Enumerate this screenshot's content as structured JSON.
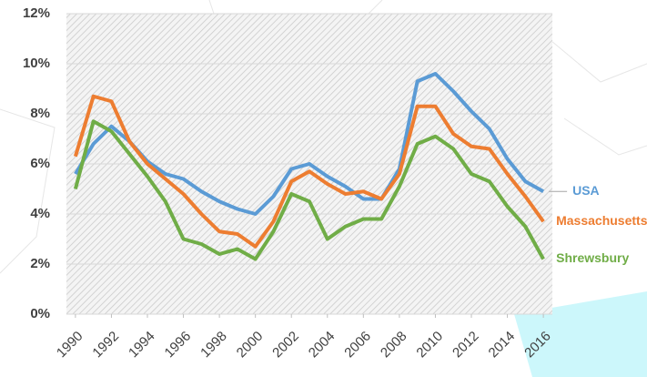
{
  "chart_data": {
    "type": "line",
    "x": [
      1990,
      1991,
      1992,
      1993,
      1994,
      1995,
      1996,
      1997,
      1998,
      1999,
      2000,
      2001,
      2002,
      2003,
      2004,
      2005,
      2006,
      2007,
      2008,
      2009,
      2010,
      2011,
      2012,
      2013,
      2014,
      2015,
      2016
    ],
    "series": [
      {
        "name": "USA",
        "color": "#5b9bd5",
        "values": [
          5.6,
          6.8,
          7.5,
          6.9,
          6.1,
          5.6,
          5.4,
          4.9,
          4.5,
          4.2,
          4.0,
          4.7,
          5.8,
          6.0,
          5.5,
          5.1,
          4.6,
          4.6,
          5.8,
          9.3,
          9.6,
          8.9,
          8.1,
          7.4,
          6.2,
          5.3,
          4.9
        ]
      },
      {
        "name": "Massachusetts",
        "color": "#ed7d31",
        "values": [
          6.3,
          8.7,
          8.5,
          6.9,
          6.0,
          5.4,
          4.8,
          4.0,
          3.3,
          3.2,
          2.7,
          3.7,
          5.3,
          5.7,
          5.2,
          4.8,
          4.9,
          4.6,
          5.6,
          8.3,
          8.3,
          7.2,
          6.7,
          6.6,
          5.6,
          4.7,
          3.7
        ]
      },
      {
        "name": "Shrewsbury",
        "color": "#70ad47",
        "values": [
          5.0,
          7.7,
          7.3,
          6.4,
          5.5,
          4.5,
          3.0,
          2.8,
          2.4,
          2.6,
          2.2,
          3.3,
          4.8,
          4.5,
          3.0,
          3.5,
          3.8,
          3.8,
          5.1,
          6.8,
          7.1,
          6.6,
          5.6,
          5.3,
          4.3,
          3.5,
          2.2
        ]
      }
    ],
    "xlim": [
      1989.5,
      2016.5
    ],
    "xticks": [
      1990,
      1992,
      1994,
      1996,
      1998,
      2000,
      2002,
      2004,
      2006,
      2008,
      2010,
      2012,
      2014,
      2016
    ],
    "ylim": [
      0,
      12
    ],
    "yticks": [
      {
        "value": 0,
        "label": "0%"
      },
      {
        "value": 2,
        "label": "2%"
      },
      {
        "value": 4,
        "label": "4%"
      },
      {
        "value": 6,
        "label": "6%"
      },
      {
        "value": 8,
        "label": "8%"
      },
      {
        "value": 10,
        "label": "10%"
      },
      {
        "value": 12,
        "label": "12%"
      }
    ],
    "grid": true
  }
}
